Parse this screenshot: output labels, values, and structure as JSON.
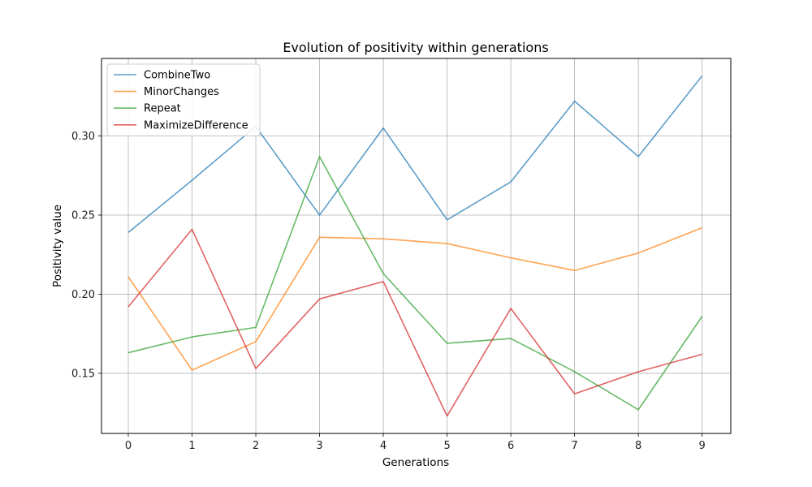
{
  "chart_data": {
    "type": "line",
    "title": "Evolution of positivity within generations",
    "xlabel": "Generations",
    "ylabel": "Positivity value",
    "x": [
      0,
      1,
      2,
      3,
      4,
      5,
      6,
      7,
      8,
      9
    ],
    "xlim": [
      -0.42,
      9.45
    ],
    "ylim": [
      0.112,
      0.349
    ],
    "yticks": [
      0.15,
      0.2,
      0.25,
      0.3
    ],
    "ytick_labels": [
      "0.15",
      "0.20",
      "0.25",
      "0.30"
    ],
    "grid": true,
    "legend_position": "upper-left",
    "series": [
      {
        "name": "CombineTwo",
        "color": "#1f77b4",
        "values": [
          0.239,
          0.272,
          0.306,
          0.25,
          0.305,
          0.247,
          0.271,
          0.322,
          0.287,
          0.338
        ]
      },
      {
        "name": "MinorChanges",
        "color": "#ff7f0e",
        "values": [
          0.211,
          0.152,
          0.17,
          0.236,
          0.235,
          0.232,
          0.223,
          0.215,
          0.226,
          0.242
        ]
      },
      {
        "name": "Repeat",
        "color": "#2ca02c",
        "values": [
          0.163,
          0.173,
          0.179,
          0.287,
          0.213,
          0.169,
          0.172,
          0.151,
          0.127,
          0.186
        ]
      },
      {
        "name": "MaximizeDifference",
        "color": "#d62728",
        "values": [
          0.192,
          0.241,
          0.153,
          0.197,
          0.208,
          0.123,
          0.191,
          0.137,
          0.151,
          0.162
        ]
      }
    ]
  }
}
